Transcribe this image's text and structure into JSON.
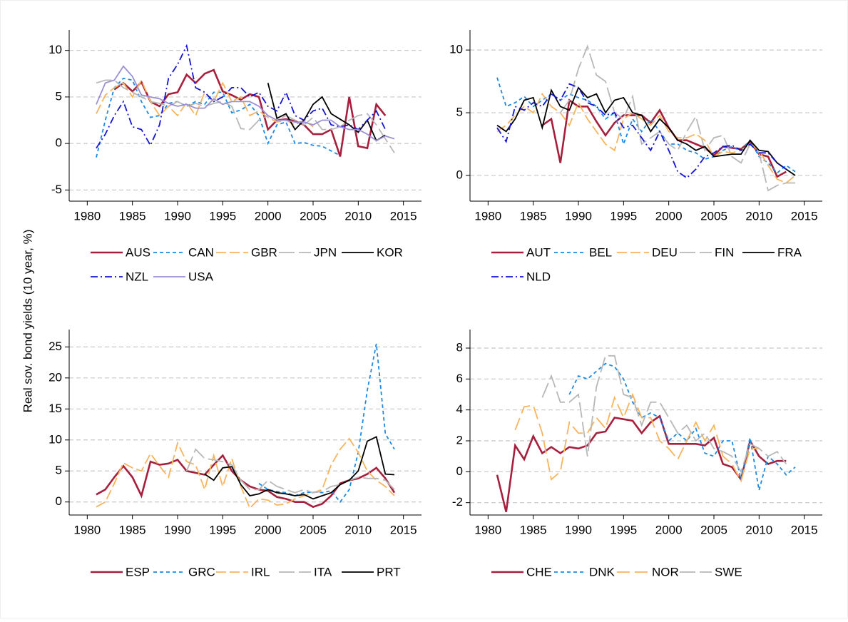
{
  "y_axis_label": "Real sov. bond yields (10 year, %)",
  "chart_data": [
    {
      "type": "line",
      "grid": true,
      "x": [
        1981,
        1982,
        1983,
        1984,
        1985,
        1986,
        1987,
        1988,
        1989,
        1990,
        1991,
        1992,
        1993,
        1994,
        1995,
        1996,
        1997,
        1998,
        1999,
        2000,
        2001,
        2002,
        2003,
        2004,
        2005,
        2006,
        2007,
        2008,
        2009,
        2010,
        2011,
        2012,
        2013,
        2014
      ],
      "xlim": [
        1978,
        2017
      ],
      "xticks": [
        1980,
        1985,
        1990,
        1995,
        2000,
        2005,
        2010,
        2015
      ],
      "ylim": [
        -6.2,
        12.2
      ],
      "yticks": [
        -5,
        0,
        5,
        10
      ],
      "series": [
        {
          "name": "AUS",
          "color": "#a6203e",
          "dash": "none",
          "values": [
            null,
            null,
            5.8,
            6.5,
            5.6,
            6.6,
            4.5,
            4.0,
            5.3,
            5.5,
            7.4,
            6.5,
            7.5,
            7.9,
            5.6,
            5.2,
            4.7,
            5.3,
            5.0,
            1.5,
            2.5,
            2.6,
            2.4,
            2.0,
            1.0,
            1.0,
            1.5,
            -1.4,
            5.0,
            -0.3,
            -0.5,
            4.2,
            3.0,
            null
          ]
        },
        {
          "name": "CAN",
          "color": "#1a8ae6",
          "dash": "5,4",
          "values": [
            -1.5,
            2.5,
            6.0,
            7.0,
            6.8,
            4.5,
            2.8,
            3.0,
            4.3,
            4.5,
            4.0,
            4.5,
            4.2,
            5.5,
            5.5,
            3.3,
            3.6,
            4.2,
            3.0,
            0.0,
            2.0,
            2.3,
            0.0,
            0.1,
            -0.2,
            -0.3,
            -0.8,
            -1.3,
            null,
            null,
            null,
            null,
            null,
            null
          ]
        },
        {
          "name": "GBR",
          "color": "#f7b45c",
          "dash": "14,5",
          "values": [
            3.2,
            5.2,
            6.0,
            6.5,
            5.0,
            6.8,
            4.5,
            3.0,
            4.0,
            3.0,
            4.4,
            3.0,
            5.5,
            4.5,
            6.5,
            4.5,
            5.0,
            3.0,
            3.5,
            2.8,
            2.3,
            2.5,
            2.0,
            2.5,
            1.8,
            null,
            null,
            null,
            null,
            null,
            null,
            null,
            null,
            null
          ]
        },
        {
          "name": "JPN",
          "color": "#b8b8b8",
          "dash": "22,6",
          "values": [
            6.5,
            6.8,
            6.8,
            6.0,
            5.5,
            5.0,
            4.5,
            4.3,
            4.0,
            4.5,
            4.0,
            4.3,
            4.0,
            4.3,
            4.5,
            4.0,
            1.6,
            1.5,
            2.5,
            3.0,
            2.5,
            3.0,
            2.5,
            2.0,
            2.8,
            1.5,
            1.5,
            1.8,
            2.5,
            3.0,
            3.2,
            2.0,
            0.5,
            -1.0
          ]
        },
        {
          "name": "KOR",
          "color": "#000000",
          "dash": "none",
          "values": [
            null,
            null,
            null,
            null,
            null,
            null,
            null,
            null,
            null,
            null,
            null,
            null,
            null,
            null,
            null,
            null,
            null,
            null,
            null,
            6.5,
            2.7,
            3.2,
            1.5,
            2.5,
            4.2,
            5.0,
            3.2,
            2.6,
            2.0,
            1.2,
            2.5,
            0.3,
            0.9,
            null
          ]
        },
        {
          "name": "NZL",
          "color": "#1414d2",
          "dash": "10,4,2,4",
          "values": [
            -0.5,
            1.0,
            3.0,
            4.5,
            1.8,
            1.5,
            -0.2,
            2.0,
            7.0,
            8.5,
            10.5,
            6.0,
            5.5,
            4.5,
            5.0,
            6.0,
            6.0,
            5.0,
            5.5,
            4.0,
            3.5,
            5.5,
            3.0,
            2.5,
            3.5,
            3.8,
            2.0,
            1.8,
            2.0,
            1.5,
            2.5,
            3.5,
            1.5,
            null
          ]
        },
        {
          "name": "USA",
          "color": "#9b8fd4",
          "dash": "none",
          "values": [
            4.2,
            6.5,
            6.8,
            8.3,
            7.2,
            5.2,
            5.0,
            4.8,
            4.3,
            4.0,
            4.2,
            3.8,
            3.8,
            4.8,
            4.2,
            4.5,
            4.5,
            4.5,
            4.0,
            3.0,
            2.5,
            2.5,
            2.3,
            2.3,
            2.0,
            2.5,
            2.5,
            1.8,
            1.5,
            1.5,
            1.0,
            0.3,
            0.8,
            0.5
          ]
        }
      ]
    },
    {
      "type": "line",
      "grid": true,
      "x": [
        1981,
        1982,
        1983,
        1984,
        1985,
        1986,
        1987,
        1988,
        1989,
        1990,
        1991,
        1992,
        1993,
        1994,
        1995,
        1996,
        1997,
        1998,
        1999,
        2000,
        2001,
        2002,
        2003,
        2004,
        2005,
        2006,
        2007,
        2008,
        2009,
        2010,
        2011,
        2012,
        2013,
        2014
      ],
      "xlim": [
        1978,
        2017
      ],
      "xticks": [
        1980,
        1985,
        1990,
        1995,
        2000,
        2005,
        2010,
        2015
      ],
      "ylim": [
        -2.05,
        11.6
      ],
      "yticks": [
        0,
        5,
        10
      ],
      "series": [
        {
          "name": "AUT",
          "color": "#a6203e",
          "dash": "none",
          "values": [
            null,
            null,
            null,
            null,
            null,
            4.0,
            4.5,
            1.0,
            6.0,
            5.5,
            5.5,
            4.3,
            3.2,
            4.2,
            4.8,
            4.8,
            4.8,
            4.2,
            5.2,
            3.8,
            2.8,
            2.8,
            2.5,
            2.2,
            1.6,
            2.3,
            2.2,
            2.1,
            2.7,
            1.7,
            1.5,
            -0.1,
            0.3,
            null
          ]
        },
        {
          "name": "BEL",
          "color": "#1a8ae6",
          "dash": "5,4",
          "values": [
            7.8,
            5.5,
            5.8,
            6.3,
            5.5,
            6.0,
            6.5,
            6.0,
            6.5,
            6.2,
            6.0,
            5.5,
            4.5,
            5.0,
            2.5,
            4.5,
            3.5,
            4.5,
            3.5,
            2.5,
            2.5,
            2.0,
            1.8,
            1.3,
            1.5,
            2.0,
            2.3,
            2.0,
            2.8,
            1.5,
            1.0,
            0.2,
            0.8,
            0.3
          ]
        },
        {
          "name": "DEU",
          "color": "#f7b45c",
          "dash": "14,5",
          "values": [
            3.5,
            4.0,
            4.8,
            5.5,
            5.0,
            6.5,
            5.5,
            5.0,
            4.0,
            5.8,
            4.5,
            3.5,
            2.5,
            2.0,
            4.5,
            5.0,
            4.5,
            4.0,
            4.8,
            3.5,
            3.0,
            3.0,
            3.3,
            2.8,
            1.5,
            1.9,
            1.8,
            2.0,
            2.5,
            2.0,
            0.8,
            -0.3,
            -0.6,
            0.0
          ]
        },
        {
          "name": "FIN",
          "color": "#b8b8b8",
          "dash": "22,6",
          "values": [
            null,
            null,
            null,
            null,
            null,
            null,
            null,
            5.0,
            6.0,
            8.5,
            10.3,
            8.0,
            7.5,
            5.0,
            4.5,
            6.3,
            2.5,
            3.0,
            3.5,
            2.5,
            2.0,
            3.5,
            4.7,
            2.0,
            3.0,
            3.2,
            1.5,
            1.0,
            2.5,
            1.8,
            -1.2,
            -0.8,
            -0.6,
            -0.6
          ]
        },
        {
          "name": "FRA",
          "color": "#000000",
          "dash": "none",
          "values": [
            4.0,
            3.5,
            4.5,
            6.0,
            6.2,
            3.8,
            6.8,
            5.5,
            5.2,
            7.0,
            6.2,
            6.5,
            5.0,
            6.0,
            6.2,
            5.0,
            4.8,
            3.5,
            4.5,
            3.8,
            2.8,
            2.5,
            2.0,
            2.3,
            1.5,
            1.6,
            1.7,
            1.7,
            2.8,
            2.0,
            1.9,
            1.0,
            0.5,
            0.0
          ]
        },
        {
          "name": "NLD",
          "color": "#1414d2",
          "dash": "10,4,2,4",
          "values": [
            3.8,
            2.7,
            5.5,
            5.2,
            5.8,
            5.5,
            6.5,
            6.0,
            7.3,
            7.0,
            5.8,
            5.5,
            4.8,
            5.0,
            3.8,
            4.0,
            3.0,
            2.0,
            3.5,
            2.0,
            0.3,
            -0.2,
            0.5,
            1.5,
            1.8,
            2.3,
            2.4,
            2.0,
            2.5,
            1.8,
            1.8,
            1.0,
            0.5,
            null
          ]
        }
      ]
    },
    {
      "type": "line",
      "grid": true,
      "x": [
        1981,
        1982,
        1983,
        1984,
        1985,
        1986,
        1987,
        1988,
        1989,
        1990,
        1991,
        1992,
        1993,
        1994,
        1995,
        1996,
        1997,
        1998,
        1999,
        2000,
        2001,
        2002,
        2003,
        2004,
        2005,
        2006,
        2007,
        2008,
        2009,
        2010,
        2011,
        2012,
        2013,
        2014
      ],
      "xlim": [
        1978,
        2017
      ],
      "xticks": [
        1980,
        1985,
        1990,
        1995,
        2000,
        2005,
        2010,
        2015
      ],
      "ylim": [
        -2.1,
        27.8
      ],
      "yticks": [
        0,
        5,
        10,
        15,
        20,
        25
      ],
      "series": [
        {
          "name": "ESP",
          "color": "#a6203e",
          "dash": "none",
          "values": [
            1.2,
            2.0,
            4.0,
            5.8,
            4.0,
            1.0,
            6.5,
            6.0,
            6.2,
            6.8,
            5.0,
            4.7,
            4.4,
            6.0,
            7.5,
            5.0,
            3.5,
            2.5,
            2.0,
            1.8,
            0.8,
            0.5,
            0.0,
            0.0,
            -0.8,
            -0.3,
            1.0,
            3.0,
            3.5,
            3.8,
            4.5,
            5.5,
            3.8,
            1.5
          ]
        },
        {
          "name": "GRC",
          "color": "#1a8ae6",
          "dash": "5,4",
          "values": [
            null,
            null,
            null,
            null,
            null,
            null,
            null,
            null,
            null,
            null,
            null,
            null,
            null,
            null,
            null,
            null,
            null,
            null,
            3.0,
            2.0,
            1.7,
            1.5,
            1.0,
            1.5,
            1.6,
            1.5,
            1.8,
            0.0,
            2.0,
            8.0,
            18.0,
            25.5,
            11.0,
            8.5
          ]
        },
        {
          "name": "IRL",
          "color": "#f7b45c",
          "dash": "14,5",
          "values": [
            -0.8,
            0.0,
            3.0,
            6.3,
            5.5,
            5.0,
            7.8,
            5.8,
            4.0,
            9.5,
            6.5,
            6.0,
            2.0,
            7.5,
            2.5,
            7.0,
            2.5,
            -1.0,
            0.5,
            0.3,
            -0.5,
            -0.3,
            0.5,
            1.0,
            1.5,
            2.0,
            6.0,
            8.5,
            10.2,
            8.0,
            5.0,
            3.5,
            2.5,
            1.0
          ]
        },
        {
          "name": "ITA",
          "color": "#b8b8b8",
          "dash": "22,6",
          "values": [
            null,
            null,
            null,
            null,
            null,
            null,
            null,
            null,
            null,
            null,
            5.0,
            8.5,
            7.0,
            6.8,
            6.5,
            6.0,
            3.5,
            2.0,
            2.0,
            3.5,
            2.5,
            2.0,
            1.5,
            2.0,
            1.5,
            1.7,
            2.5,
            2.8,
            3.5,
            4.0,
            3.8,
            3.8,
            3.5,
            2.0
          ]
        },
        {
          "name": "PRT",
          "color": "#000000",
          "dash": "none",
          "values": [
            null,
            null,
            null,
            null,
            null,
            null,
            null,
            null,
            null,
            null,
            null,
            null,
            4.5,
            3.5,
            5.5,
            5.7,
            2.8,
            1.0,
            1.3,
            2.0,
            1.5,
            1.3,
            1.0,
            1.2,
            0.5,
            1.0,
            1.5,
            2.8,
            3.5,
            5.0,
            9.8,
            10.5,
            4.5,
            4.4
          ]
        }
      ]
    },
    {
      "type": "line",
      "grid": true,
      "x": [
        1981,
        1982,
        1983,
        1984,
        1985,
        1986,
        1987,
        1988,
        1989,
        1990,
        1991,
        1992,
        1993,
        1994,
        1995,
        1996,
        1997,
        1998,
        1999,
        2000,
        2001,
        2002,
        2003,
        2004,
        2005,
        2006,
        2007,
        2008,
        2009,
        2010,
        2011,
        2012,
        2013,
        2014
      ],
      "xlim": [
        1978,
        2017
      ],
      "xticks": [
        1980,
        1985,
        1990,
        1995,
        2000,
        2005,
        2010,
        2015
      ],
      "ylim": [
        -2.8,
        9.2
      ],
      "yticks": [
        -2,
        0,
        2,
        4,
        6,
        8
      ],
      "series": [
        {
          "name": "CHE",
          "color": "#a6203e",
          "dash": "none",
          "values": [
            -0.2,
            -2.6,
            1.7,
            0.8,
            2.3,
            1.2,
            1.6,
            1.2,
            1.6,
            1.5,
            1.7,
            2.5,
            2.6,
            3.5,
            3.4,
            3.3,
            2.5,
            3.2,
            3.6,
            1.8,
            1.8,
            1.8,
            1.8,
            1.7,
            2.2,
            0.5,
            0.3,
            -0.5,
            2.0,
            1.0,
            0.5,
            0.7,
            0.7,
            null
          ]
        },
        {
          "name": "DNK",
          "color": "#1a8ae6",
          "dash": "5,4",
          "values": [
            null,
            null,
            null,
            null,
            null,
            null,
            null,
            null,
            5.0,
            6.2,
            6.0,
            6.5,
            7.0,
            6.8,
            6.0,
            4.5,
            3.5,
            3.8,
            3.5,
            2.0,
            2.5,
            2.0,
            2.8,
            1.2,
            1.0,
            2.0,
            2.0,
            -0.5,
            2.2,
            -1.2,
            1.0,
            0.5,
            -0.2,
            0.3
          ]
        },
        {
          "name": "NOR",
          "color": "#f7b45c",
          "dash": "18,7",
          "values": [
            null,
            null,
            2.7,
            4.2,
            4.3,
            2.5,
            -0.5,
            0.0,
            3.2,
            2.5,
            2.5,
            3.5,
            2.8,
            4.8,
            3.5,
            5.0,
            3.5,
            3.5,
            2.0,
            1.5,
            0.8,
            2.0,
            3.2,
            2.0,
            3.0,
            1.0,
            0.5,
            -0.6,
            1.5,
            1.5,
            null,
            null,
            null,
            null
          ]
        },
        {
          "name": "SWE",
          "color": "#b8b8b8",
          "dash": "22,6",
          "values": [
            null,
            null,
            null,
            null,
            null,
            4.8,
            6.2,
            4.5,
            4.5,
            5.0,
            1.0,
            5.5,
            7.5,
            7.5,
            5.0,
            4.8,
            3.0,
            4.5,
            4.5,
            3.5,
            2.5,
            3.0,
            2.0,
            2.5,
            1.5,
            1.3,
            1.0,
            0.0,
            1.8,
            1.5,
            1.0,
            1.3,
            0.5,
            null
          ]
        }
      ]
    }
  ]
}
